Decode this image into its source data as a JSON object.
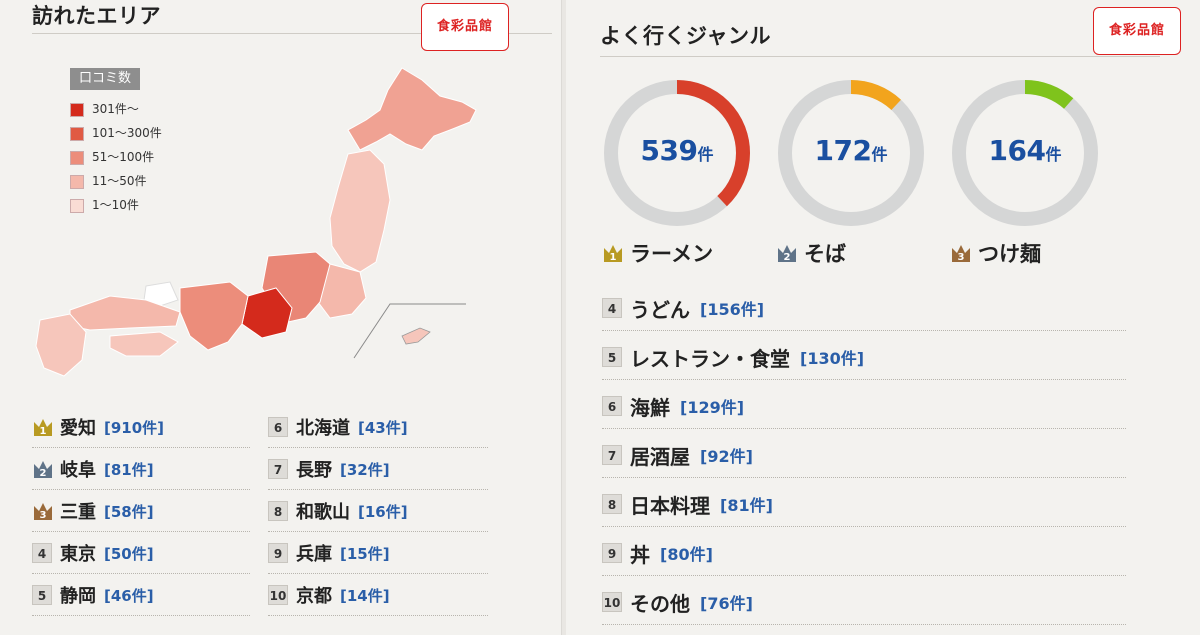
{
  "area": {
    "title": "訪れたエリア",
    "stamp": "食彩品館",
    "legend": {
      "title": "口コミ数",
      "items": [
        {
          "label": "301件〜",
          "color": "#d42a1c"
        },
        {
          "label": "101〜300件",
          "color": "#e05a43"
        },
        {
          "label": "51〜100件",
          "color": "#ec8d7b"
        },
        {
          "label": "11〜50件",
          "color": "#f4b8ab"
        },
        {
          "label": "1〜10件",
          "color": "#f9dcd4"
        }
      ]
    },
    "ranking_left": [
      {
        "rank": "1",
        "name": "愛知",
        "count": "[910件]"
      },
      {
        "rank": "2",
        "name": "岐阜",
        "count": "[81件]"
      },
      {
        "rank": "3",
        "name": "三重",
        "count": "[58件]"
      },
      {
        "rank": "4",
        "name": "東京",
        "count": "[50件]"
      },
      {
        "rank": "5",
        "name": "静岡",
        "count": "[46件]"
      }
    ],
    "ranking_right": [
      {
        "rank": "6",
        "name": "北海道",
        "count": "[43件]"
      },
      {
        "rank": "7",
        "name": "長野",
        "count": "[32件]"
      },
      {
        "rank": "8",
        "name": "和歌山",
        "count": "[16件]"
      },
      {
        "rank": "9",
        "name": "兵庫",
        "count": "[15件]"
      },
      {
        "rank": "10",
        "name": "京都",
        "count": "[14件]"
      }
    ]
  },
  "genre": {
    "title": "よく行くジャンル",
    "stamp": "食彩品館",
    "top": [
      {
        "rank": "1",
        "name": "ラーメン",
        "count": "539",
        "unit": "件",
        "fraction": 0.38,
        "color": "#d8402b"
      },
      {
        "rank": "2",
        "name": "そば",
        "count": "172",
        "unit": "件",
        "fraction": 0.12,
        "color": "#f2a41d"
      },
      {
        "rank": "3",
        "name": "つけ麺",
        "count": "164",
        "unit": "件",
        "fraction": 0.115,
        "color": "#7fc31c"
      }
    ],
    "list": [
      {
        "rank": "4",
        "name": "うどん",
        "count": "[156件]"
      },
      {
        "rank": "5",
        "name": "レストラン・食堂",
        "count": "[130件]"
      },
      {
        "rank": "6",
        "name": "海鮮",
        "count": "[129件]"
      },
      {
        "rank": "7",
        "name": "居酒屋",
        "count": "[92件]"
      },
      {
        "rank": "8",
        "name": "日本料理",
        "count": "[81件]"
      },
      {
        "rank": "9",
        "name": "丼",
        "count": "[80件]"
      },
      {
        "rank": "10",
        "name": "その他",
        "count": "[76件]"
      }
    ]
  },
  "colors": {
    "crown_gold": "#b89a22",
    "crown_silver": "#5f7388",
    "crown_bronze": "#9a6a3a",
    "donut_track": "#d5d6d6",
    "count_blue": "#2a5ea8"
  }
}
